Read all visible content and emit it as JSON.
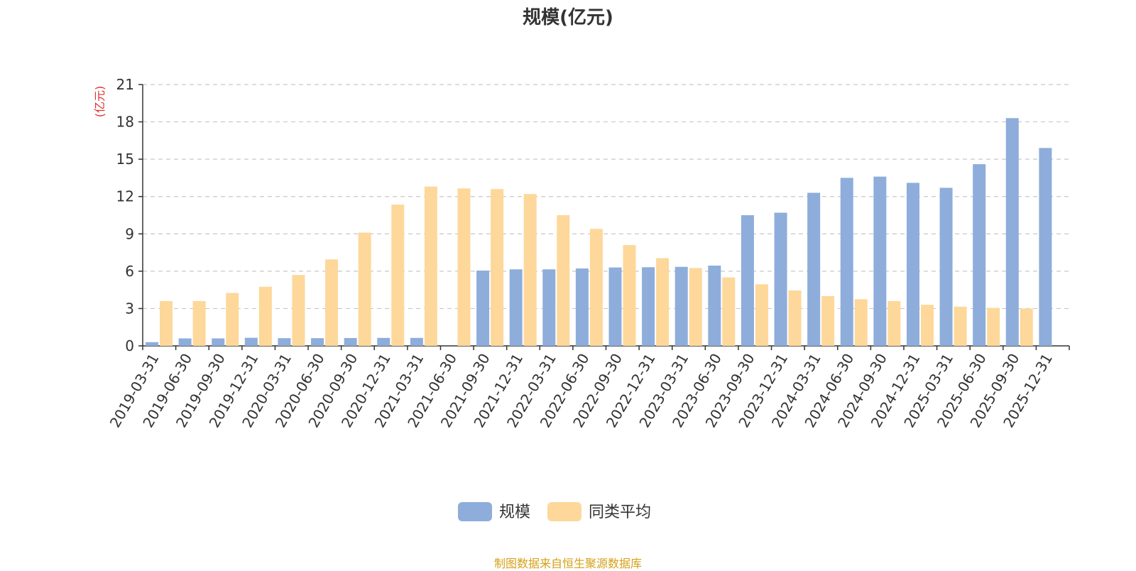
{
  "chart_data": {
    "type": "bar",
    "title": "规模(亿元)",
    "unit_label": "(亿元)",
    "ylim": [
      0,
      21
    ],
    "yticks": [
      0,
      3,
      6,
      9,
      12,
      15,
      18,
      21
    ],
    "grid": true,
    "legend_position": "bottom",
    "categories": [
      "2019-03-31",
      "2019-06-30",
      "2019-09-30",
      "2019-12-31",
      "2020-03-31",
      "2020-06-30",
      "2020-09-30",
      "2020-12-31",
      "2021-03-31",
      "2021-06-30",
      "2021-09-30",
      "2021-12-31",
      "2022-03-31",
      "2022-06-30",
      "2022-09-30",
      "2022-12-31",
      "2023-03-31",
      "2023-06-30",
      "2023-09-30",
      "2023-12-31",
      "2024-03-31",
      "2024-06-30",
      "2024-09-30",
      "2024-12-31",
      "2025-03-31",
      "2025-06-30",
      "2025-09-30",
      "2025-12-31"
    ],
    "series": [
      {
        "name": "规模",
        "color": "#8EADDB",
        "values": [
          0.3,
          0.6,
          0.6,
          0.65,
          0.62,
          0.62,
          0.63,
          0.64,
          0.64,
          null,
          6.05,
          6.15,
          6.15,
          6.22,
          6.3,
          6.32,
          6.35,
          6.45,
          10.5,
          10.7,
          12.3,
          13.5,
          13.6,
          13.1,
          12.7,
          14.6,
          18.3,
          15.9
        ]
      },
      {
        "name": "同类平均",
        "color": "#FDD89A",
        "values": [
          3.6,
          3.6,
          4.25,
          4.75,
          5.7,
          6.95,
          9.1,
          11.35,
          12.8,
          12.65,
          12.6,
          12.2,
          10.5,
          9.4,
          8.1,
          7.05,
          6.25,
          5.5,
          4.95,
          4.45,
          4.0,
          3.75,
          3.6,
          3.3,
          3.15,
          3.05,
          3.0,
          null
        ]
      }
    ]
  },
  "footer": {
    "source": "制图数据来自恒生聚源数据库"
  }
}
